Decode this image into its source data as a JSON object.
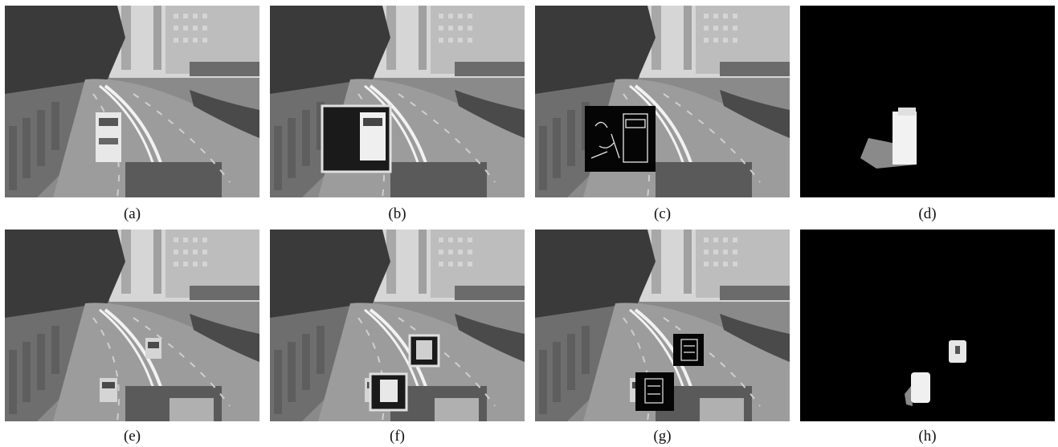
{
  "figure": {
    "panels": [
      {
        "id": "a",
        "caption": "(a)",
        "kind": "scene"
      },
      {
        "id": "b",
        "caption": "(b)",
        "kind": "scene-box"
      },
      {
        "id": "c",
        "caption": "(c)",
        "kind": "scene-edge"
      },
      {
        "id": "d",
        "caption": "(d)",
        "kind": "mask"
      },
      {
        "id": "e",
        "caption": "(e)",
        "kind": "scene"
      },
      {
        "id": "f",
        "caption": "(f)",
        "kind": "scene-box"
      },
      {
        "id": "g",
        "caption": "(g)",
        "kind": "scene-edge"
      },
      {
        "id": "h",
        "caption": "(h)",
        "kind": "mask"
      }
    ]
  }
}
